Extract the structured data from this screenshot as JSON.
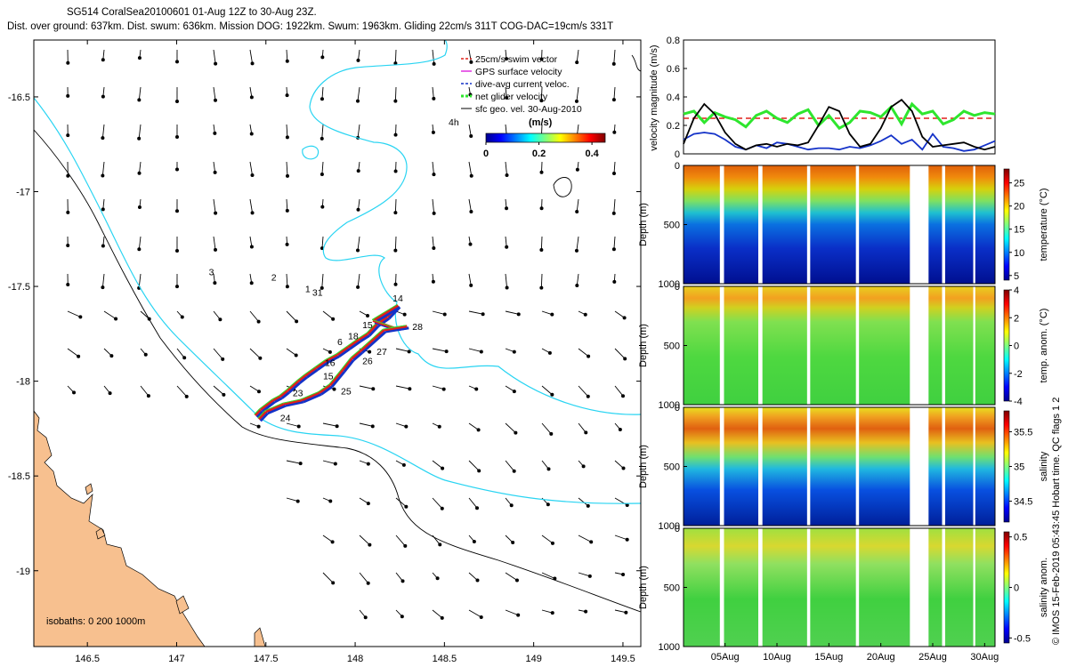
{
  "title_line1": "SG514 CoralSea20100601 01-Aug 12Z to 30-Aug 23Z.",
  "title_line2": "Dist. over ground: 637km. Dist. swum: 636km. Mission DOG: 1922km. Swum: 1963km. Gliding 22cm/s 311T COG-DAC=19cm/s 331T",
  "colors": {
    "land": "#f7c08f",
    "isobath": "#29d4f2",
    "swim": "#e0201a",
    "gps": "#e030e0",
    "dac": "#1432c8",
    "net": "#2ee62e",
    "geo": "#000000"
  },
  "chart_data": [
    {
      "type": "map",
      "xlim": [
        146.2,
        149.6
      ],
      "ylim": [
        -19.4,
        -16.2
      ],
      "xticks": [
        "146.5",
        "147",
        "147.5",
        "148",
        "148.5",
        "149",
        "149.5"
      ],
      "xtick_values": [
        146.5,
        147,
        147.5,
        148,
        148.5,
        149,
        149.5
      ],
      "yticks": [
        "-16.5",
        "-17",
        "-17.5",
        "-18",
        "-18.5",
        "-19"
      ],
      "ytick_values": [
        -16.5,
        -17,
        -17.5,
        -18,
        -18.5,
        -19
      ],
      "legend": [
        "25cm/s swim vector",
        "GPS surface velocity",
        "dive-avg current veloc.",
        "net glider velocity",
        "sfc geo. vel. 30-Aug-2010"
      ],
      "legend_position": "top-right",
      "colorbar": {
        "title": "(m/s)",
        "range": [
          0,
          0.45
        ],
        "ticks": [
          "0",
          "0.2",
          "0.4"
        ],
        "tick_values": [
          0,
          0.2,
          0.4
        ]
      },
      "scale_note": "4h",
      "isobaths_note": "isobaths: 0   200  1000m",
      "track_points": [
        [
          147.44,
          -18.18
        ],
        [
          147.47,
          -18.15
        ],
        [
          147.54,
          -18.1
        ],
        [
          147.58,
          -18.08
        ],
        [
          147.62,
          -18.05
        ],
        [
          147.68,
          -18.0
        ],
        [
          147.72,
          -17.97
        ],
        [
          147.78,
          -17.93
        ],
        [
          147.84,
          -17.89
        ],
        [
          147.9,
          -17.86
        ],
        [
          147.96,
          -17.82
        ],
        [
          148.02,
          -17.78
        ],
        [
          148.07,
          -17.75
        ],
        [
          148.12,
          -17.7
        ],
        [
          148.18,
          -17.66
        ],
        [
          148.24,
          -17.6
        ],
        [
          148.1,
          -17.68
        ],
        [
          148.22,
          -17.72
        ],
        [
          148.29,
          -17.71
        ],
        [
          148.16,
          -17.73
        ],
        [
          148.03,
          -17.84
        ],
        [
          147.98,
          -17.88
        ],
        [
          147.93,
          -17.94
        ],
        [
          147.86,
          -18.02
        ],
        [
          147.8,
          -18.06
        ],
        [
          147.7,
          -18.1
        ],
        [
          147.6,
          -18.12
        ],
        [
          147.5,
          -18.16
        ],
        [
          147.46,
          -18.2
        ]
      ],
      "day_labels": [
        {
          "label": "1",
          "lon": 147.72,
          "lat": -17.53
        },
        {
          "label": "2",
          "lon": 147.53,
          "lat": -17.47
        },
        {
          "label": "3",
          "lon": 147.18,
          "lat": -17.44
        },
        {
          "label": "31",
          "lon": 147.76,
          "lat": -17.55
        },
        {
          "label": "14",
          "lon": 148.21,
          "lat": -17.58
        },
        {
          "label": "15",
          "lon": 148.04,
          "lat": -17.72
        },
        {
          "label": "18",
          "lon": 147.96,
          "lat": -17.78
        },
        {
          "label": "6",
          "lon": 147.9,
          "lat": -17.81
        },
        {
          "label": "16",
          "lon": 147.83,
          "lat": -17.92
        },
        {
          "label": "15",
          "lon": 147.82,
          "lat": -17.99
        },
        {
          "label": "23",
          "lon": 147.65,
          "lat": -18.08
        },
        {
          "label": "24",
          "lon": 147.58,
          "lat": -18.21
        },
        {
          "label": "25",
          "lon": 147.92,
          "lat": -18.07
        },
        {
          "label": "26",
          "lon": 148.04,
          "lat": -17.91
        },
        {
          "label": "27",
          "lon": 148.12,
          "lat": -17.86
        },
        {
          "label": "28",
          "lon": 148.32,
          "lat": -17.73
        }
      ]
    },
    {
      "type": "line",
      "ylabel": "velocity magnitude (m/s)",
      "ylim": [
        0,
        0.8
      ],
      "yticks": [
        "0",
        "0.2",
        "0.4",
        "0.6",
        "0.8"
      ],
      "ytick_values": [
        0,
        0.2,
        0.4,
        0.6,
        0.8
      ],
      "xlim": [
        1,
        31
      ],
      "series": [
        {
          "name": "swim",
          "style": "dashed",
          "x": [
            1,
            31
          ],
          "y": [
            0.25,
            0.25
          ]
        },
        {
          "name": "net glider velocity",
          "x": [
            1,
            2,
            3,
            4,
            5,
            6,
            7,
            8,
            9,
            10,
            11,
            12,
            13,
            14,
            15,
            16,
            17,
            18,
            19,
            20,
            21,
            22,
            23,
            24,
            25,
            26,
            27,
            28,
            29,
            30,
            31
          ],
          "y": [
            0.28,
            0.3,
            0.22,
            0.29,
            0.26,
            0.24,
            0.19,
            0.27,
            0.3,
            0.25,
            0.22,
            0.28,
            0.31,
            0.2,
            0.27,
            0.18,
            0.22,
            0.3,
            0.29,
            0.26,
            0.33,
            0.21,
            0.35,
            0.28,
            0.3,
            0.21,
            0.24,
            0.3,
            0.27,
            0.29,
            0.28
          ]
        },
        {
          "name": "dive-avg current",
          "x": [
            1,
            2,
            3,
            4,
            5,
            6,
            7,
            8,
            9,
            10,
            11,
            12,
            13,
            14,
            15,
            16,
            17,
            18,
            19,
            20,
            21,
            22,
            23,
            24,
            25,
            26,
            27,
            28,
            29,
            30,
            31
          ],
          "y": [
            0.1,
            0.14,
            0.15,
            0.14,
            0.1,
            0.05,
            0.03,
            0.06,
            0.04,
            0.08,
            0.07,
            0.05,
            0.03,
            0.04,
            0.04,
            0.03,
            0.05,
            0.04,
            0.06,
            0.09,
            0.13,
            0.07,
            0.1,
            0.03,
            0.14,
            0.05,
            0.04,
            0.02,
            0.03,
            0.06,
            0.09
          ]
        },
        {
          "name": "sfc geo. vel.",
          "x": [
            1,
            2,
            3,
            4,
            5,
            6,
            7,
            8,
            9,
            10,
            11,
            12,
            13,
            14,
            15,
            16,
            17,
            18,
            19,
            20,
            21,
            22,
            23,
            24,
            25,
            26,
            27,
            28,
            29,
            30,
            31
          ],
          "y": [
            0.07,
            0.25,
            0.35,
            0.28,
            0.15,
            0.07,
            0.03,
            0.06,
            0.07,
            0.05,
            0.07,
            0.06,
            0.08,
            0.2,
            0.33,
            0.3,
            0.14,
            0.05,
            0.07,
            0.18,
            0.33,
            0.38,
            0.3,
            0.12,
            0.05,
            0.06,
            0.07,
            0.08,
            0.05,
            0.03,
            0.05
          ]
        }
      ]
    },
    {
      "type": "heatmap",
      "ylabel": "Depth (m)",
      "cbar_label": "temperature (°C)",
      "cbar_range": [
        4,
        28
      ],
      "cbar_ticks": [
        "25",
        "20",
        "15",
        "10",
        "5"
      ],
      "cbar_tick_values": [
        25,
        20,
        15,
        10,
        5
      ],
      "ylim": [
        0,
        1000
      ],
      "yticks": [
        "0",
        "500",
        "1000"
      ],
      "ytick_values": [
        0,
        500,
        1000
      ]
    },
    {
      "type": "heatmap",
      "ylabel": "Depth (m)",
      "cbar_label": "temp. anom. (°C)",
      "cbar_range": [
        -4,
        4
      ],
      "cbar_ticks": [
        "4",
        "2",
        "0",
        "-2",
        "-4"
      ],
      "cbar_tick_values": [
        4,
        2,
        0,
        -2,
        -4
      ],
      "ylim": [
        0,
        1000
      ],
      "yticks": [
        "0",
        "500",
        "1000"
      ],
      "ytick_values": [
        0,
        500,
        1000
      ]
    },
    {
      "type": "heatmap",
      "ylabel": "Depth (m)",
      "cbar_label": "salinity",
      "cbar_range": [
        34.2,
        35.8
      ],
      "cbar_ticks": [
        "35.5",
        "35",
        "34.5"
      ],
      "cbar_tick_values": [
        35.5,
        35,
        34.5
      ],
      "ylim": [
        0,
        1000
      ],
      "yticks": [
        "0",
        "500",
        "1000"
      ],
      "ytick_values": [
        0,
        500,
        1000
      ]
    },
    {
      "type": "heatmap",
      "ylabel": "Depth (m)",
      "cbar_label": "salinity anom.",
      "cbar_range": [
        -0.55,
        0.55
      ],
      "cbar_ticks": [
        "0.5",
        "0",
        "-0.5"
      ],
      "cbar_tick_values": [
        0.5,
        0,
        -0.5
      ],
      "ylim": [
        0,
        1000
      ],
      "yticks": [
        "0",
        "500",
        "1000"
      ],
      "ytick_values": [
        0,
        500,
        1000
      ],
      "xticks": [
        "05Aug",
        "10Aug",
        "15Aug",
        "20Aug",
        "25Aug",
        "30Aug"
      ],
      "xtick_values": [
        5,
        10,
        15,
        20,
        25,
        30
      ],
      "xlim": [
        1,
        31
      ]
    }
  ],
  "heatmap_gaps": [
    [
      4.5,
      4.9
    ],
    [
      8.2,
      8.6
    ],
    [
      12.9,
      13.2
    ],
    [
      17.6,
      17.9
    ],
    [
      22.8,
      24.6
    ],
    [
      25.9,
      26.2
    ],
    [
      28.9,
      29.1
    ]
  ],
  "footer_note": "© IMOS 15-Feb-2019 05:43:45 Hobart time. QC flags 1  2"
}
